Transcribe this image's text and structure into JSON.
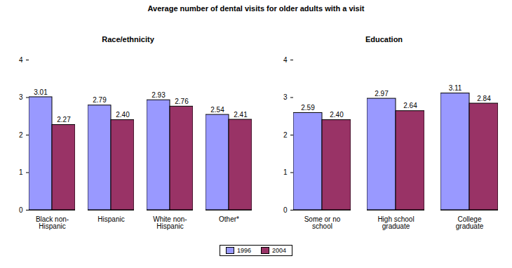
{
  "title": "Average number of dental visits for older adults with a visit",
  "chart_data": [
    {
      "type": "bar",
      "title": "Race/ethnicity",
      "categories": [
        "Black non-Hispanic",
        "Hispanic",
        "White non-Hispanic",
        "Other*"
      ],
      "series": [
        {
          "name": "1996",
          "color": "#9999ff",
          "values": [
            3.01,
            2.79,
            2.93,
            2.54
          ],
          "value_labels": [
            "3.01",
            "2.79",
            "2.93",
            "2.54"
          ]
        },
        {
          "name": "2004",
          "color": "#993366",
          "values": [
            2.27,
            2.4,
            2.76,
            2.41
          ],
          "value_labels": [
            "2.27",
            "2.40",
            "2.76",
            "2.41"
          ]
        }
      ],
      "ylim": [
        0,
        4
      ],
      "yticks": [
        0,
        1,
        2,
        3,
        4
      ],
      "data_labels": true,
      "legend": "bottom"
    },
    {
      "type": "bar",
      "title": "Education",
      "categories": [
        "Some or no school",
        "High school graduate",
        "College graduate"
      ],
      "series": [
        {
          "name": "1996",
          "color": "#9999ff",
          "values": [
            2.59,
            2.97,
            3.11
          ],
          "value_labels": [
            "2.59",
            "2.97",
            "3.11"
          ]
        },
        {
          "name": "2004",
          "color": "#993366",
          "values": [
            2.4,
            2.64,
            2.84
          ],
          "value_labels": [
            "2.40",
            "2.64",
            "2.84"
          ]
        }
      ],
      "ylim": [
        0,
        4
      ],
      "yticks": [
        0,
        1,
        2,
        3,
        4
      ],
      "data_labels": true,
      "legend": "bottom"
    }
  ]
}
